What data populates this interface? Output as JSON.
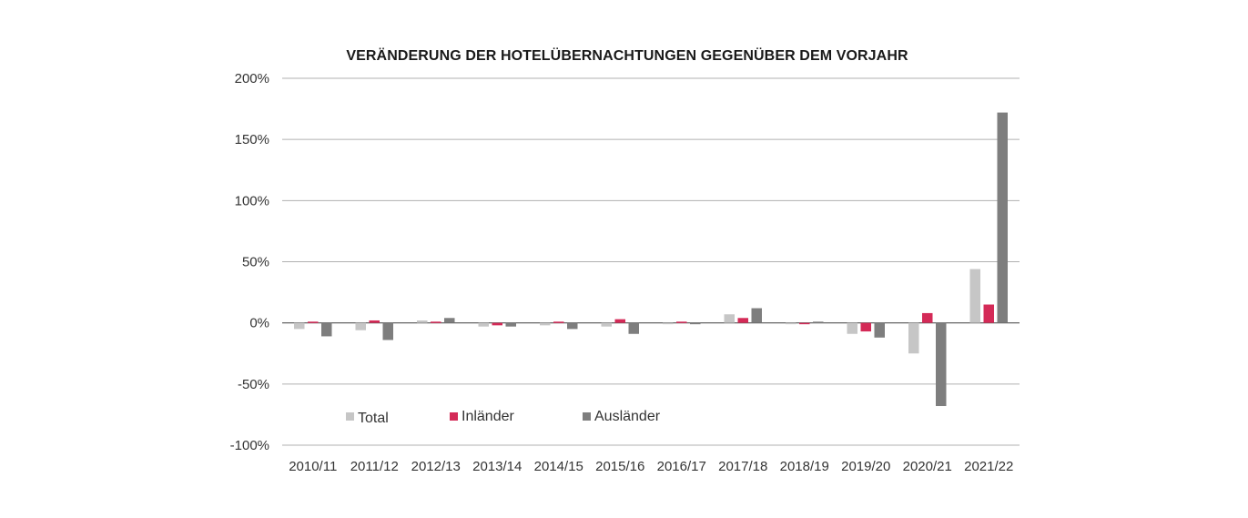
{
  "chart_data": {
    "type": "bar",
    "title": "VERÄNDERUNG DER HOTELÜBERNACHTUNGEN GEGENÜBER DEM VORJAHR",
    "xlabel": "",
    "ylabel": "",
    "ylim": [
      -100,
      200
    ],
    "yticks": [
      200,
      150,
      100,
      50,
      0,
      -50,
      -100
    ],
    "ytick_labels": [
      "200%",
      "150%",
      "100%",
      "50%",
      "0%",
      "-50%",
      "-100%"
    ],
    "grid": true,
    "legend_position": "lower-left",
    "categories": [
      "2010/11",
      "2011/12",
      "2012/13",
      "2013/14",
      "2014/15",
      "2015/16",
      "2016/17",
      "2017/18",
      "2018/19",
      "2019/20",
      "2020/21",
      "2021/22"
    ],
    "series": [
      {
        "name": "Total",
        "color": "#c6c6c6",
        "values": [
          -5,
          -6,
          2,
          -3,
          -2,
          -3,
          0,
          7,
          0,
          -9,
          -25,
          44
        ]
      },
      {
        "name": "Inländer",
        "color": "#d42a57",
        "values": [
          1,
          2,
          1,
          -2,
          1,
          3,
          1,
          4,
          -1,
          -7,
          8,
          15
        ]
      },
      {
        "name": "Ausländer",
        "color": "#7e7e7e",
        "values": [
          -11,
          -14,
          4,
          -3,
          -5,
          -9,
          -1,
          12,
          1,
          -12,
          -68,
          172
        ]
      }
    ]
  }
}
